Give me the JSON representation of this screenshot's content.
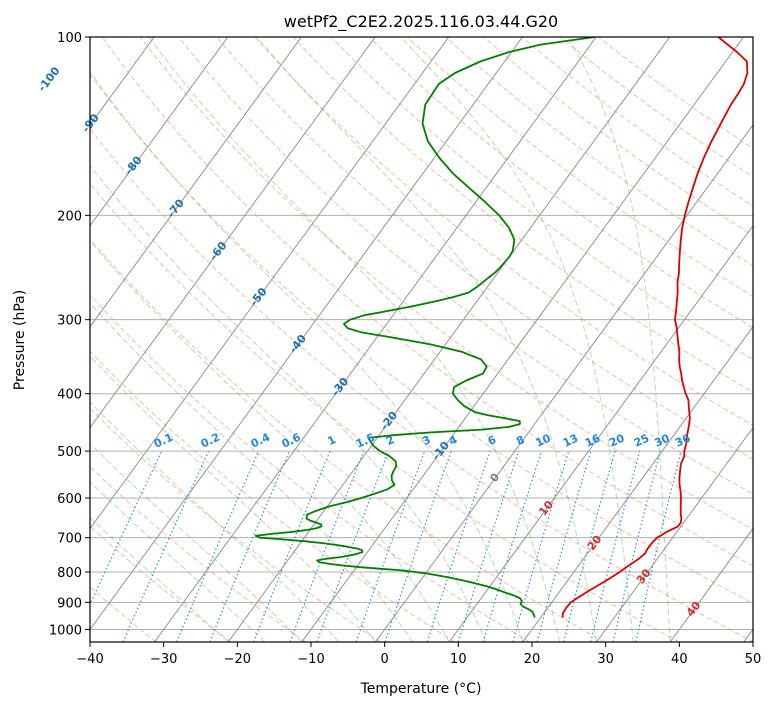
{
  "chart_data": {
    "type": "skew-t",
    "title": "wetPf2_C2E2.2025.116.03.44.G20",
    "xlabel": "Temperature (°C)",
    "ylabel": "Pressure (hPa)",
    "xlim": [
      -40,
      50
    ],
    "ylim": [
      1050,
      100
    ],
    "y_scale": "log",
    "x_ticks": [
      "−40",
      "−30",
      "−20",
      "−10",
      "0",
      "10",
      "20",
      "30",
      "40",
      "50"
    ],
    "y_ticks": [
      "100",
      "200",
      "300",
      "400",
      "500",
      "600",
      "700",
      "800",
      "900",
      "1000"
    ],
    "grid": true,
    "colors": {
      "temperature": "#e00000",
      "dewpoint": "#008000",
      "dry_adiabat": "#ff8a65",
      "moist_adiabat": "#2e9e2e",
      "mixing_ratio": "#1e88e5",
      "isotherm": "#8a8a8a",
      "isotherm_label_cold": "#1f6fb0",
      "isotherm_label_warm": "#d32f2f",
      "isotherm_label_zero": "#808080"
    },
    "series": [
      {
        "name": "",
        "key": "temperature",
        "pressure": [
          955,
          940,
          920,
          900,
          880,
          860,
          840,
          820,
          800,
          780,
          760,
          745,
          730,
          715,
          700,
          685,
          670,
          660,
          650,
          640,
          625,
          610,
          600,
          585,
          570,
          555,
          540,
          525,
          510,
          500,
          485,
          470,
          455,
          440,
          425,
          410,
          400,
          390,
          380,
          370,
          360,
          350,
          340,
          330,
          320,
          310,
          300,
          290,
          280,
          270,
          260,
          250,
          240,
          230,
          220,
          210,
          200,
          190,
          180,
          170,
          160,
          150,
          140,
          130,
          125,
          120,
          115,
          110,
          106,
          103,
          100
        ],
        "temperature": [
          23,
          22.6,
          22.5,
          22.6,
          23.2,
          23.9,
          24.7,
          25.5,
          26.2,
          26.8,
          27.5,
          27.8,
          27.7,
          27.7,
          27.9,
          28.6,
          29.6,
          29.6,
          29.3,
          28.8,
          28.2,
          27.6,
          27.2,
          26.5,
          25.7,
          25.0,
          24.4,
          23.8,
          23.5,
          23.0,
          22.5,
          21.8,
          21.2,
          20.5,
          19.5,
          18.5,
          17.5,
          16.6,
          15.7,
          14.9,
          14.0,
          13.2,
          12.5,
          11.6,
          10.7,
          9.8,
          8.7,
          8.0,
          7.2,
          6.4,
          5.4,
          4.6,
          3.6,
          2.6,
          1.6,
          0.6,
          -0.3,
          -1.1,
          -1.9,
          -2.7,
          -3.4,
          -4.0,
          -4.5,
          -5.0,
          -5.1,
          -5.3,
          -5.9,
          -7.1,
          -9.4,
          -11.4,
          -13.4
        ]
      },
      {
        "name": "",
        "key": "dewpoint",
        "pressure": [
          955,
          945,
          935,
          925,
          915,
          905,
          895,
          885,
          875,
          865,
          855,
          845,
          835,
          825,
          815,
          805,
          795,
          790,
          785,
          780,
          775,
          770,
          765,
          760,
          755,
          750,
          745,
          740,
          735,
          730,
          725,
          720,
          715,
          710,
          705,
          700,
          695,
          690,
          685,
          680,
          675,
          670,
          665,
          660,
          655,
          650,
          640,
          630,
          620,
          610,
          600,
          590,
          580,
          570,
          560,
          550,
          540,
          530,
          520,
          510,
          500,
          490,
          480,
          475,
          470,
          465,
          460,
          455,
          450,
          445,
          440,
          435,
          430,
          420,
          410,
          400,
          390,
          380,
          370,
          360,
          350,
          340,
          330,
          320,
          315,
          310,
          305,
          300,
          295,
          290,
          285,
          280,
          275,
          270,
          265,
          260,
          255,
          250,
          245,
          240,
          235,
          230,
          220,
          210,
          200,
          190,
          180,
          170,
          160,
          150,
          140,
          130,
          120,
          115,
          110,
          106,
          103,
          100
        ],
        "temperature": [
          19.2,
          18.8,
          18.4,
          17.6,
          16.5,
          15.9,
          15.8,
          15.2,
          14.0,
          12.5,
          11.1,
          9.5,
          7.5,
          5.4,
          3.0,
          0.3,
          -3.5,
          -6.5,
          -9.5,
          -12.0,
          -14.0,
          -15.5,
          -16.0,
          -15.0,
          -13.2,
          -12.0,
          -11.2,
          -10.7,
          -10.9,
          -11.8,
          -13.3,
          -15.0,
          -17.0,
          -19.5,
          -22.5,
          -26.0,
          -26.8,
          -25.0,
          -22.5,
          -20.6,
          -19.3,
          -18.8,
          -19.0,
          -19.9,
          -20.9,
          -21.6,
          -21.9,
          -21.0,
          -19.7,
          -17.8,
          -16.2,
          -14.8,
          -13.5,
          -13.0,
          -13.8,
          -14.3,
          -14.5,
          -14.6,
          -15.2,
          -16.5,
          -18.3,
          -19.7,
          -20.7,
          -21.2,
          -18.1,
          -13.2,
          -6.6,
          -3.1,
          -2.0,
          -2.3,
          -4.6,
          -7.2,
          -9.2,
          -11.3,
          -12.8,
          -14.1,
          -14.6,
          -13.6,
          -12.0,
          -12.2,
          -13.7,
          -17.0,
          -22.1,
          -29.0,
          -32.7,
          -34.9,
          -35.8,
          -35.4,
          -33.9,
          -31.1,
          -28.4,
          -25.9,
          -23.7,
          -22.0,
          -21.5,
          -21.1,
          -20.8,
          -20.4,
          -20.2,
          -20.1,
          -20.0,
          -20.1,
          -21.0,
          -22.9,
          -25.5,
          -28.7,
          -32.2,
          -35.9,
          -39.3,
          -42.5,
          -45.0,
          -46.5,
          -46.7,
          -45.6,
          -43.3,
          -40.3,
          -36.8,
          -30.2
        ]
      }
    ],
    "isotherm_labels": [
      "-100",
      "-90",
      "-80",
      "-70",
      "-60",
      "-50",
      "-40",
      "-30",
      "-20",
      "-10",
      "0",
      "10",
      "20",
      "30",
      "40"
    ],
    "mixing_ratio_labels": [
      "0.1",
      "0.2",
      "0.4",
      "0.6",
      "1",
      "1.5",
      "2",
      "3",
      "4",
      "6",
      "8",
      "10",
      "13",
      "16",
      "20",
      "25",
      "30",
      "36"
    ]
  }
}
